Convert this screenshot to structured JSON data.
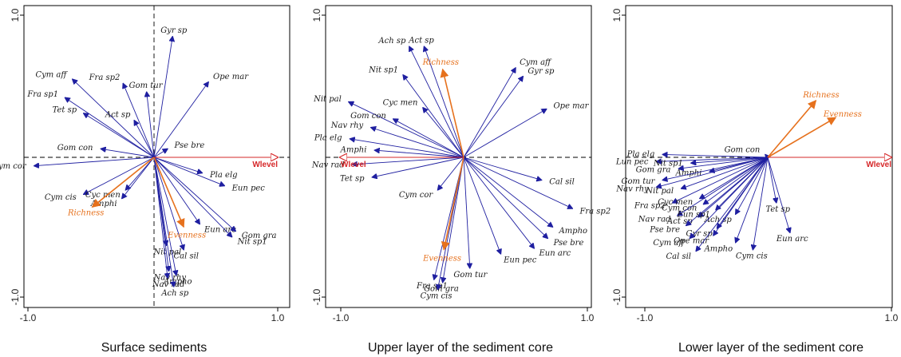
{
  "colors": {
    "species_arrow": "#1f1fa0",
    "diversity_arrow": "#e6711d",
    "wlevel_arrow": "#d6282a",
    "frame": "#000000"
  },
  "chart_data": [
    {
      "type": "scatter",
      "subtype": "biplot",
      "caption": "Surface sediments",
      "xlim": [
        -1.0,
        1.0
      ],
      "ylim": [
        -1.0,
        1.0
      ],
      "x_ticks": [
        "-1.0",
        "1.0"
      ],
      "y_ticks": [
        "-1.0",
        "1.0"
      ],
      "zero_lines": true,
      "vertical_zero_line": true,
      "environment": {
        "name": "Wlevel",
        "x": 1.0,
        "y": 0.0
      },
      "diversity": [
        {
          "name": "Richness",
          "x": -0.5,
          "y": -0.35
        },
        {
          "name": "Evenness",
          "x": 0.24,
          "y": -0.49
        }
      ],
      "species": [
        {
          "name": "Gyr sp",
          "x": 0.15,
          "y": 0.85
        },
        {
          "name": "Ope mar",
          "x": 0.44,
          "y": 0.53
        },
        {
          "name": "Cym aff",
          "x": -0.66,
          "y": 0.55
        },
        {
          "name": "Fra sp2",
          "x": -0.25,
          "y": 0.52
        },
        {
          "name": "Gom tur",
          "x": -0.06,
          "y": 0.46
        },
        {
          "name": "Fra sp1",
          "x": -0.72,
          "y": 0.42
        },
        {
          "name": "Tet sp",
          "x": -0.57,
          "y": 0.31
        },
        {
          "name": "Act sp",
          "x": -0.16,
          "y": 0.26
        },
        {
          "name": "Gom con",
          "x": -0.43,
          "y": 0.06
        },
        {
          "name": "Pse bre",
          "x": 0.11,
          "y": 0.06
        },
        {
          "name": "Cym cor",
          "x": -0.97,
          "y": -0.06
        },
        {
          "name": "Pla elg",
          "x": 0.39,
          "y": -0.11
        },
        {
          "name": "Eun pec",
          "x": 0.57,
          "y": -0.2
        },
        {
          "name": "Cym cis",
          "x": -0.57,
          "y": -0.26
        },
        {
          "name": "Cyc men",
          "x": -0.23,
          "y": -0.23
        },
        {
          "name": "Amphi",
          "x": -0.26,
          "y": -0.29
        },
        {
          "name": "Eun arc",
          "x": 0.37,
          "y": -0.47
        },
        {
          "name": "Gom gra",
          "x": 0.66,
          "y": -0.52
        },
        {
          "name": "Nit sp1",
          "x": 0.63,
          "y": -0.56
        },
        {
          "name": "Nit pal",
          "x": 0.1,
          "y": -0.62
        },
        {
          "name": "Cal sil",
          "x": 0.24,
          "y": -0.65
        },
        {
          "name": "Nav rhy",
          "x": 0.12,
          "y": -0.8
        },
        {
          "name": "Nav rad",
          "x": 0.11,
          "y": -0.85
        },
        {
          "name": "Ampho",
          "x": 0.18,
          "y": -0.83
        },
        {
          "name": "Ach sp",
          "x": 0.16,
          "y": -0.91
        }
      ]
    },
    {
      "type": "scatter",
      "subtype": "biplot",
      "caption": "Upper layer of the sediment core",
      "xlim": [
        -1.0,
        1.0
      ],
      "ylim": [
        -1.0,
        1.0
      ],
      "x_ticks": [
        "-1.0",
        "1.0"
      ],
      "y_ticks": [
        "-1.0",
        "1.0"
      ],
      "zero_lines": true,
      "vertical_zero_line": false,
      "environment": {
        "name": "Wlevel",
        "x": -1.0,
        "y": 0.0
      },
      "diversity": [
        {
          "name": "Richness",
          "x": -0.17,
          "y": 0.62
        },
        {
          "name": "Evenness",
          "x": -0.16,
          "y": -0.65
        }
      ],
      "species": [
        {
          "name": "Ach sp",
          "x": -0.44,
          "y": 0.78
        },
        {
          "name": "Act sp",
          "x": -0.32,
          "y": 0.78
        },
        {
          "name": "Cym aff",
          "x": 0.42,
          "y": 0.63
        },
        {
          "name": "Gyr sp",
          "x": 0.48,
          "y": 0.57
        },
        {
          "name": "Nit sp1",
          "x": -0.49,
          "y": 0.58
        },
        {
          "name": "Ope mar",
          "x": 0.67,
          "y": 0.34
        },
        {
          "name": "Nit pal",
          "x": -0.93,
          "y": 0.39
        },
        {
          "name": "Cyc men",
          "x": -0.33,
          "y": 0.35
        },
        {
          "name": "Gom con",
          "x": -0.57,
          "y": 0.27
        },
        {
          "name": "Nav rhy",
          "x": -0.75,
          "y": 0.21
        },
        {
          "name": "Pla elg",
          "x": -0.92,
          "y": 0.13
        },
        {
          "name": "Amphi",
          "x": -0.72,
          "y": 0.05
        },
        {
          "name": "Nav rad",
          "x": -0.9,
          "y": -0.05
        },
        {
          "name": "Tet sp",
          "x": -0.74,
          "y": -0.14
        },
        {
          "name": "Cal sil",
          "x": 0.63,
          "y": -0.16
        },
        {
          "name": "Cym cor",
          "x": -0.21,
          "y": -0.23
        },
        {
          "name": "Fra sp2",
          "x": 0.88,
          "y": -0.36
        },
        {
          "name": "Ampho",
          "x": 0.72,
          "y": -0.49
        },
        {
          "name": "Pse bre",
          "x": 0.68,
          "y": -0.57
        },
        {
          "name": "Eun arc",
          "x": 0.57,
          "y": -0.64
        },
        {
          "name": "Eun pec",
          "x": 0.3,
          "y": -0.68
        },
        {
          "name": "Gom tur",
          "x": 0.05,
          "y": -0.78
        },
        {
          "name": "Fra sp1",
          "x": -0.24,
          "y": -0.86
        },
        {
          "name": "Gom gra",
          "x": -0.17,
          "y": -0.88
        },
        {
          "name": "Cym cis",
          "x": -0.21,
          "y": -0.93
        }
      ]
    },
    {
      "type": "scatter",
      "subtype": "biplot",
      "caption": "Lower layer of the sediment core",
      "xlim": [
        -1.0,
        1.0
      ],
      "ylim": [
        -1.0,
        1.0
      ],
      "x_ticks": [
        "-1.0",
        "1.0"
      ],
      "y_ticks": [
        "-1.0",
        "1.0"
      ],
      "zero_lines": true,
      "vertical_zero_line": false,
      "environment": {
        "name": "Wlevel",
        "x": 1.0,
        "y": 0.0
      },
      "diversity": [
        {
          "name": "Richness",
          "x": 0.39,
          "y": 0.4
        },
        {
          "name": "Evenness",
          "x": 0.55,
          "y": 0.28
        }
      ],
      "species": [
        {
          "name": "Gom con",
          "x": -0.02,
          "y": 0.02
        },
        {
          "name": "Pla elg",
          "x": -0.85,
          "y": 0.02
        },
        {
          "name": "Lun pec",
          "x": -0.9,
          "y": -0.03
        },
        {
          "name": "Nit sp1",
          "x": -0.62,
          "y": -0.04
        },
        {
          "name": "Gom gra",
          "x": -0.72,
          "y": -0.08
        },
        {
          "name": "Amphi",
          "x": -0.47,
          "y": -0.1
        },
        {
          "name": "Gom tur",
          "x": -0.85,
          "y": -0.16
        },
        {
          "name": "Nav rhy",
          "x": -0.9,
          "y": -0.21
        },
        {
          "name": "Nit pal",
          "x": -0.7,
          "y": -0.22
        },
        {
          "name": "Fra sp2",
          "x": -0.77,
          "y": -0.32
        },
        {
          "name": "Cyc men",
          "x": -0.55,
          "y": -0.29
        },
        {
          "name": "Cym con",
          "x": -0.52,
          "y": -0.33
        },
        {
          "name": "Nav rad",
          "x": -0.73,
          "y": -0.41
        },
        {
          "name": "Act sp",
          "x": -0.56,
          "y": -0.42
        },
        {
          "name": "Eun sp1",
          "x": -0.42,
          "y": -0.37
        },
        {
          "name": "Ach sp",
          "x": -0.26,
          "y": -0.4
        },
        {
          "name": "Pse bre",
          "x": -0.66,
          "y": -0.48
        },
        {
          "name": "Gyr sp",
          "x": -0.41,
          "y": -0.5
        },
        {
          "name": "Cym aff",
          "x": -0.63,
          "y": -0.57
        },
        {
          "name": "Ope mar",
          "x": -0.44,
          "y": -0.55
        },
        {
          "name": "Cal sil",
          "x": -0.58,
          "y": -0.66
        },
        {
          "name": "Ampho",
          "x": -0.26,
          "y": -0.6
        },
        {
          "name": "Cym cis",
          "x": -0.12,
          "y": -0.65
        },
        {
          "name": "Eun arc",
          "x": 0.18,
          "y": -0.53
        },
        {
          "name": "Tet sp",
          "x": 0.07,
          "y": -0.32
        }
      ]
    }
  ]
}
